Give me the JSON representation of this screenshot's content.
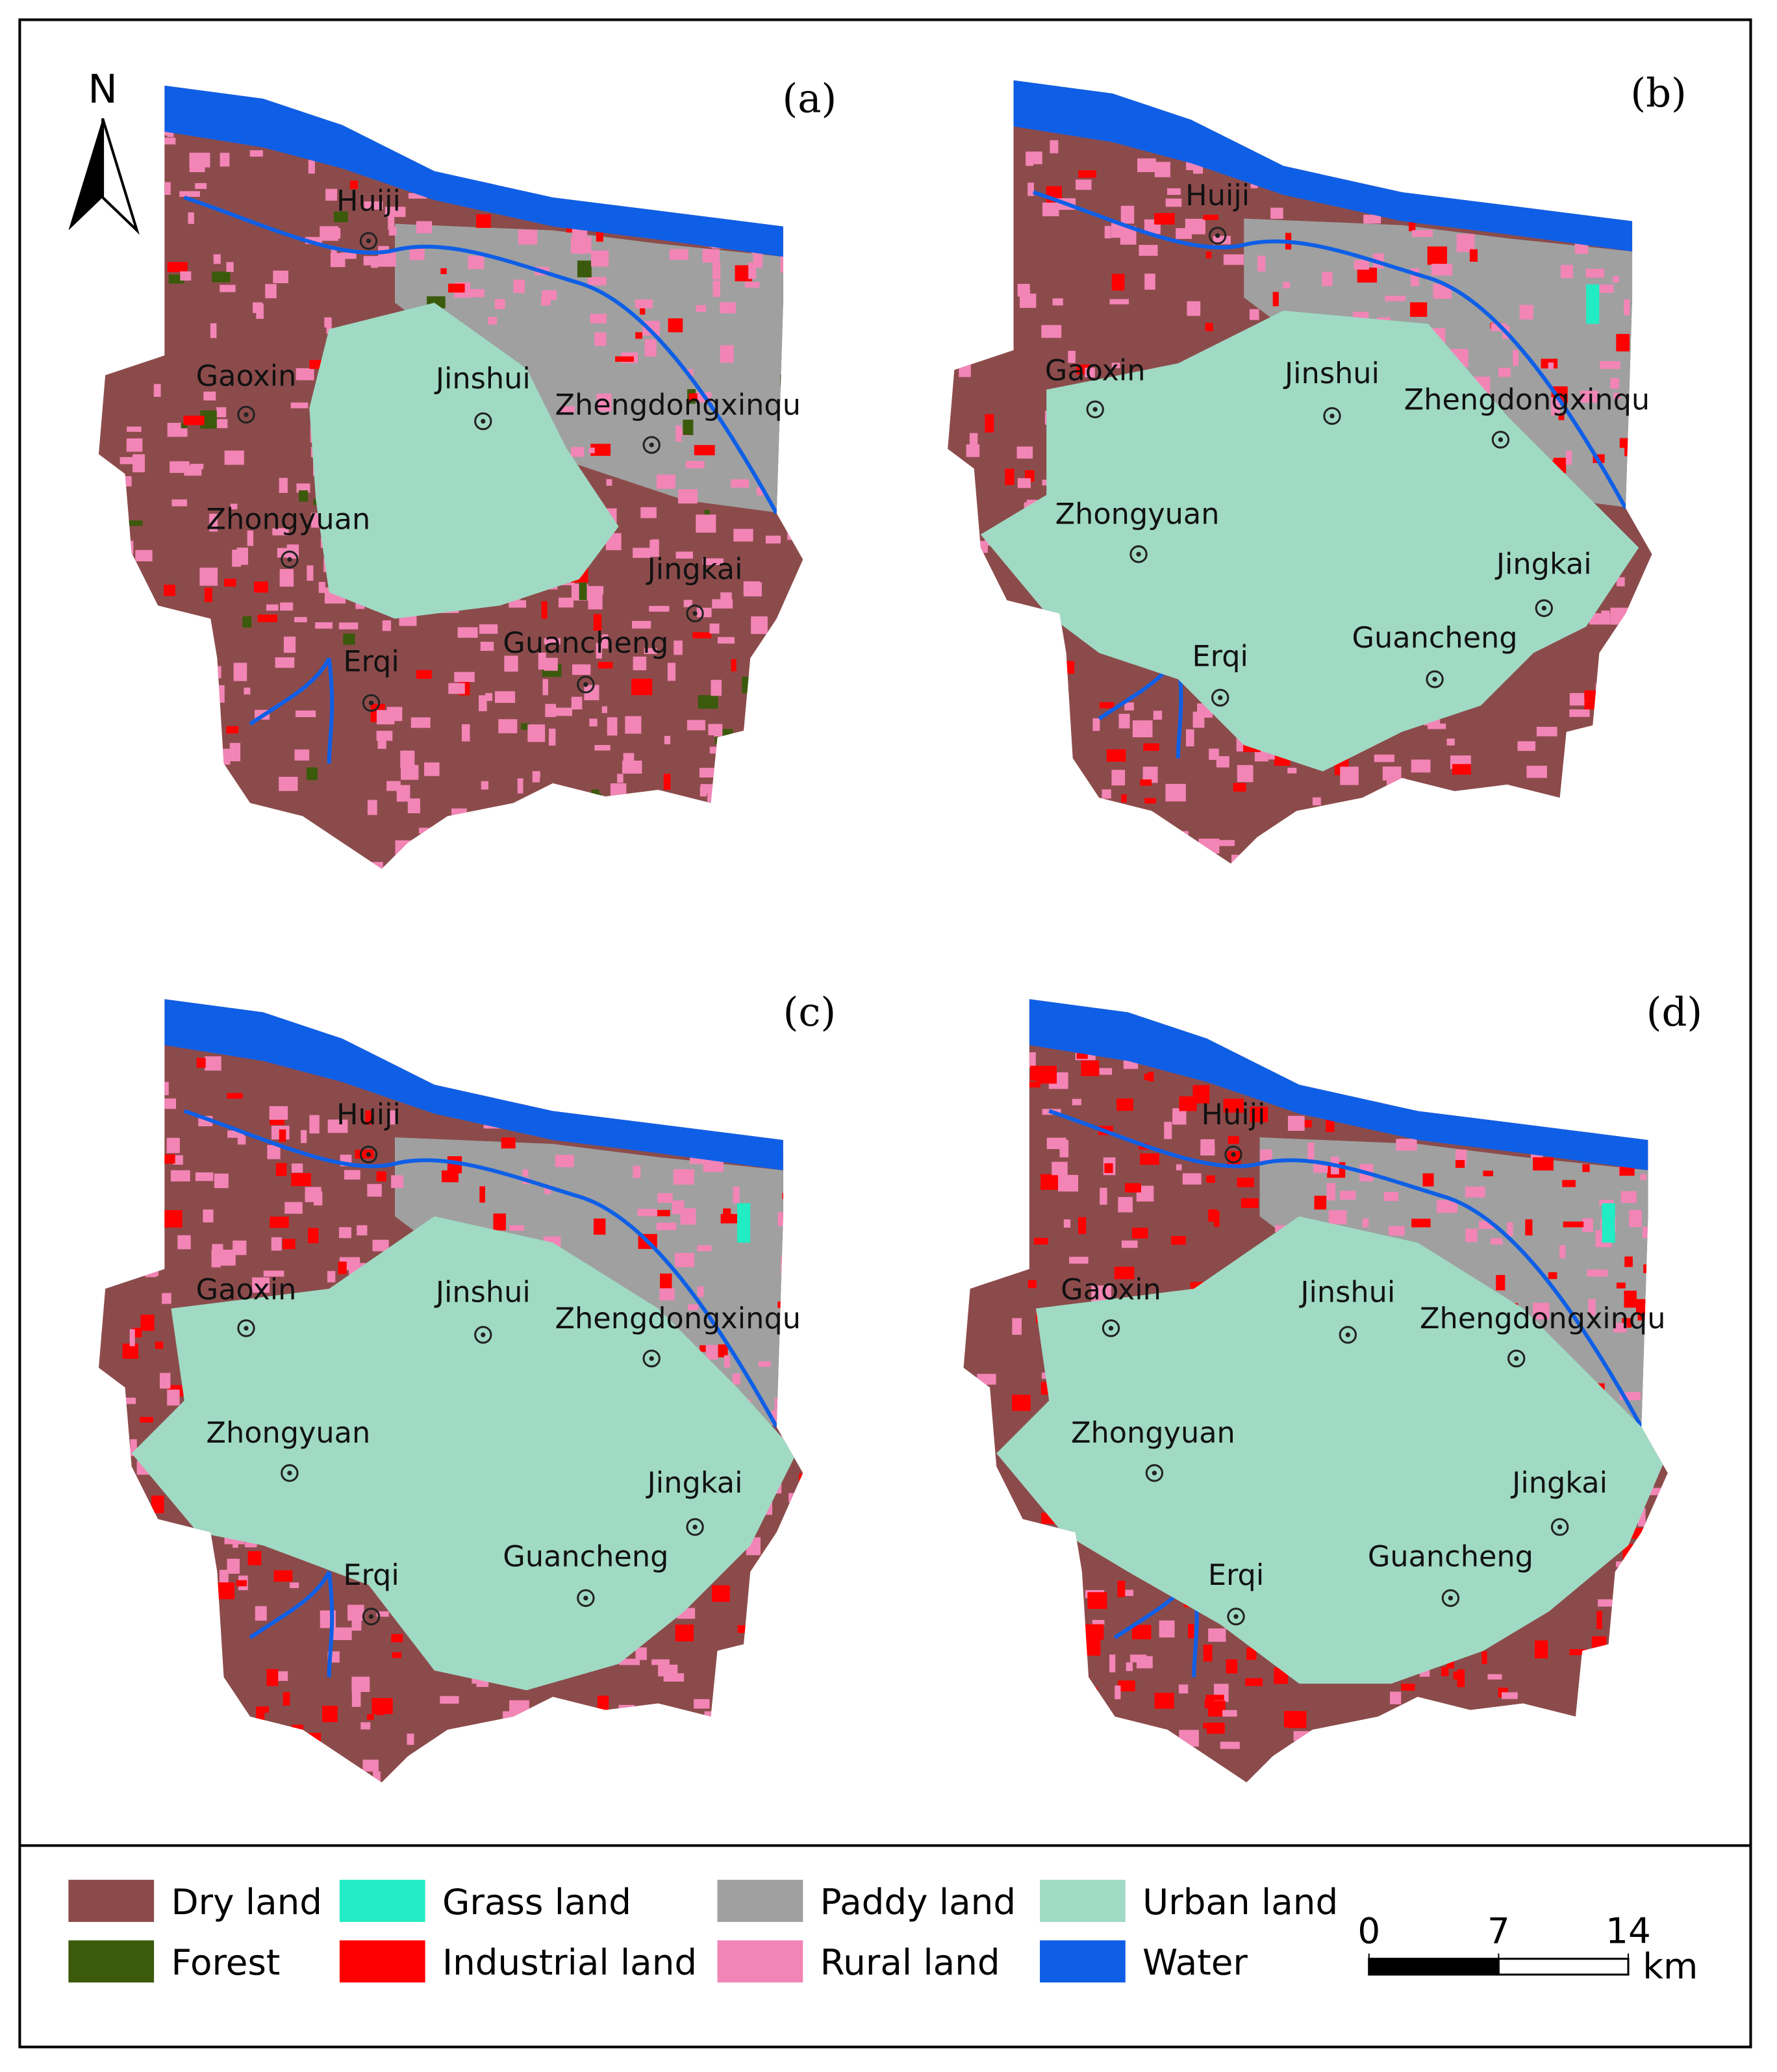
{
  "panels": [
    {
      "label": "(a)",
      "places": [
        "Huiji",
        "Gaoxin",
        "Jinshui",
        "Zhengdongxinqu",
        "Zhongyuan",
        "Jingkai",
        "Erqi",
        "Guancheng"
      ]
    },
    {
      "label": "(b)",
      "places": [
        "Huiji",
        "Gaoxin",
        "Jinshui",
        "Zhengdongxinqu",
        "Zhongyuan",
        "Jingkai",
        "Erqi",
        "Guancheng"
      ]
    },
    {
      "label": "(c)",
      "places": [
        "Huiji",
        "Gaoxin",
        "Jinshui",
        "Zhengdongxinqu",
        "Zhongyuan",
        "Jingkai",
        "Erqi",
        "Guancheng"
      ]
    },
    {
      "label": "(d)",
      "places": [
        "Huiji",
        "Gaoxin",
        "Jinshui",
        "Zhengdongxinqu",
        "Zhongyuan",
        "Jingkai",
        "Erqi",
        "Guancheng"
      ]
    }
  ],
  "north": "N",
  "legend": [
    {
      "name": "Dry land",
      "color": "#8c4b4b"
    },
    {
      "name": "Forest",
      "color": "#3b5a0c"
    },
    {
      "name": "Grass land",
      "color": "#22ecc4"
    },
    {
      "name": "Industrial land",
      "color": "#ff0000"
    },
    {
      "name": "Paddy land",
      "color": "#a0a0a0"
    },
    {
      "name": "Rural land",
      "color": "#f285b6"
    },
    {
      "name": "Urban land",
      "color": "#a0dac4"
    },
    {
      "name": "Water",
      "color": "#0f5fe6"
    }
  ],
  "scale_bar": {
    "ticks": [
      0,
      7,
      14
    ],
    "unit": "km"
  }
}
